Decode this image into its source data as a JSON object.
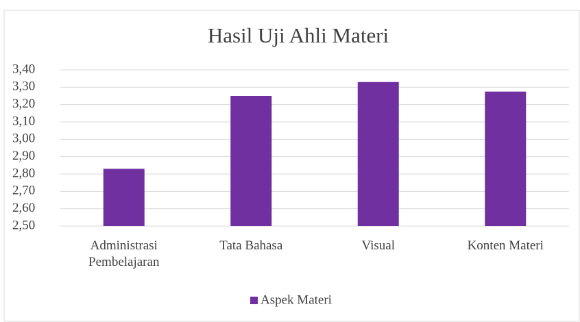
{
  "chart_data": {
    "type": "bar",
    "title": "Hasil Uji Ahli Materi",
    "categories": [
      "Administrasi Pembelajaran",
      "Tata Bahasa",
      "Visual",
      "Konten Materi"
    ],
    "series": [
      {
        "name": "Aspek Materi",
        "color": "#7030a0",
        "values": [
          2.83,
          3.25,
          3.33,
          3.275
        ]
      }
    ],
    "ylim": [
      2.5,
      3.4
    ],
    "yticks": [
      {
        "value": 2.5,
        "label": "2,50"
      },
      {
        "value": 2.6,
        "label": "2,60"
      },
      {
        "value": 2.7,
        "label": "2,70"
      },
      {
        "value": 2.8,
        "label": "2,80"
      },
      {
        "value": 2.9,
        "label": "2,90"
      },
      {
        "value": 3.0,
        "label": "3,00"
      },
      {
        "value": 3.1,
        "label": "3,10"
      },
      {
        "value": 3.2,
        "label": "3,20"
      },
      {
        "value": 3.3,
        "label": "3,30"
      },
      {
        "value": 3.4,
        "label": "3,40"
      }
    ],
    "grid": true,
    "legend": "bottom"
  }
}
